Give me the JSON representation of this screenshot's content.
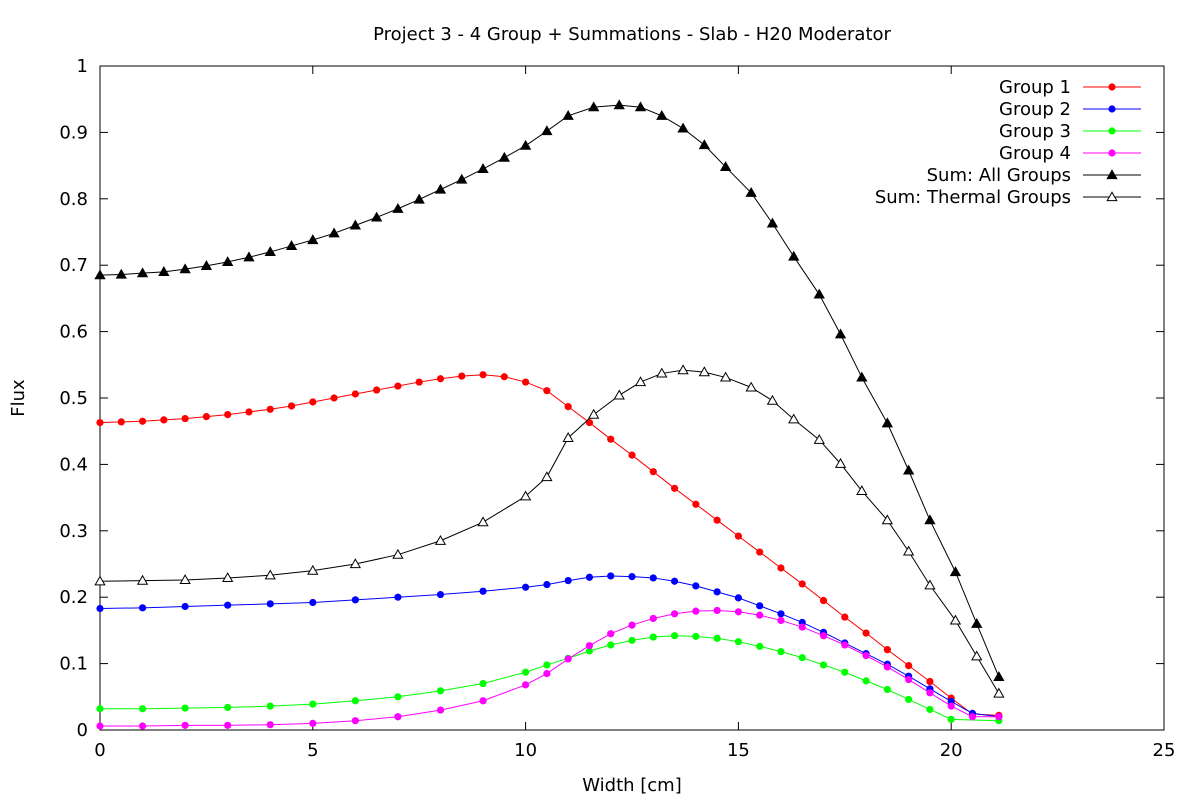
{
  "chart_data": {
    "type": "line",
    "title": "Project 3 - 4 Group + Summations - Slab - H20 Moderator",
    "xlabel": "Width [cm]",
    "ylabel": "Flux",
    "xlim": [
      0,
      25
    ],
    "ylim": [
      0,
      1
    ],
    "xticks": [
      "0",
      "5",
      "10",
      "15",
      "20",
      "25"
    ],
    "yticks": [
      "0",
      "0.1",
      "0.2",
      "0.3",
      "0.4",
      "0.5",
      "0.6",
      "0.7",
      "0.8",
      "0.9",
      "1"
    ],
    "grid": false,
    "legend_position": "top-right",
    "series": [
      {
        "name": "Group 1",
        "color": "#ff0000",
        "marker": "filled-circle",
        "points": [
          [
            0,
            0.463
          ],
          [
            0.5,
            0.464
          ],
          [
            1,
            0.465
          ],
          [
            1.5,
            0.467
          ],
          [
            2,
            0.469
          ],
          [
            2.5,
            0.472
          ],
          [
            3,
            0.475
          ],
          [
            3.5,
            0.479
          ],
          [
            4,
            0.483
          ],
          [
            4.5,
            0.488
          ],
          [
            5,
            0.494
          ],
          [
            5.5,
            0.5
          ],
          [
            6,
            0.506
          ],
          [
            6.5,
            0.512
          ],
          [
            7,
            0.518
          ],
          [
            7.5,
            0.524
          ],
          [
            8,
            0.529
          ],
          [
            8.5,
            0.533
          ],
          [
            9,
            0.535
          ],
          [
            9.5,
            0.532
          ],
          [
            10,
            0.524
          ],
          [
            10.5,
            0.511
          ],
          [
            11,
            0.487
          ],
          [
            11.5,
            0.463
          ],
          [
            12,
            0.438
          ],
          [
            12.5,
            0.414
          ],
          [
            13,
            0.389
          ],
          [
            13.5,
            0.364
          ],
          [
            14,
            0.34
          ],
          [
            14.5,
            0.316
          ],
          [
            15,
            0.292
          ],
          [
            15.5,
            0.268
          ],
          [
            16,
            0.244
          ],
          [
            16.5,
            0.22
          ],
          [
            17,
            0.195
          ],
          [
            17.5,
            0.17
          ],
          [
            18,
            0.146
          ],
          [
            18.5,
            0.121
          ],
          [
            19,
            0.097
          ],
          [
            19.5,
            0.073
          ],
          [
            20,
            0.048
          ],
          [
            20.5,
            0.024
          ],
          [
            21.12,
            0.022
          ]
        ]
      },
      {
        "name": "Group 2",
        "color": "#0000ff",
        "marker": "filled-circle",
        "points": [
          [
            0,
            0.183
          ],
          [
            1,
            0.184
          ],
          [
            2,
            0.186
          ],
          [
            3,
            0.188
          ],
          [
            4,
            0.19
          ],
          [
            5,
            0.192
          ],
          [
            6,
            0.196
          ],
          [
            7,
            0.2
          ],
          [
            8,
            0.204
          ],
          [
            9,
            0.209
          ],
          [
            10,
            0.215
          ],
          [
            10.5,
            0.219
          ],
          [
            11,
            0.225
          ],
          [
            11.5,
            0.23
          ],
          [
            12,
            0.232
          ],
          [
            12.5,
            0.231
          ],
          [
            13,
            0.229
          ],
          [
            13.5,
            0.224
          ],
          [
            14,
            0.217
          ],
          [
            14.5,
            0.208
          ],
          [
            15,
            0.199
          ],
          [
            15.5,
            0.187
          ],
          [
            16,
            0.175
          ],
          [
            16.5,
            0.162
          ],
          [
            17,
            0.147
          ],
          [
            17.5,
            0.131
          ],
          [
            18,
            0.115
          ],
          [
            18.5,
            0.099
          ],
          [
            19,
            0.081
          ],
          [
            19.5,
            0.062
          ],
          [
            20,
            0.043
          ],
          [
            20.5,
            0.025
          ],
          [
            21.12,
            0.02
          ]
        ]
      },
      {
        "name": "Group 3",
        "color": "#00ff00",
        "marker": "filled-circle",
        "points": [
          [
            0,
            0.032
          ],
          [
            1,
            0.032
          ],
          [
            2,
            0.033
          ],
          [
            3,
            0.034
          ],
          [
            4,
            0.036
          ],
          [
            5,
            0.039
          ],
          [
            6,
            0.044
          ],
          [
            7,
            0.05
          ],
          [
            8,
            0.059
          ],
          [
            9,
            0.07
          ],
          [
            10,
            0.087
          ],
          [
            10.5,
            0.098
          ],
          [
            11,
            0.108
          ],
          [
            11.5,
            0.119
          ],
          [
            12,
            0.128
          ],
          [
            12.5,
            0.135
          ],
          [
            13,
            0.14
          ],
          [
            13.5,
            0.142
          ],
          [
            14,
            0.141
          ],
          [
            14.5,
            0.138
          ],
          [
            15,
            0.133
          ],
          [
            15.5,
            0.126
          ],
          [
            16,
            0.118
          ],
          [
            16.5,
            0.109
          ],
          [
            17,
            0.098
          ],
          [
            17.5,
            0.087
          ],
          [
            18,
            0.074
          ],
          [
            18.5,
            0.061
          ],
          [
            19,
            0.046
          ],
          [
            19.5,
            0.031
          ],
          [
            20,
            0.016
          ],
          [
            21.12,
            0.014
          ]
        ]
      },
      {
        "name": "Group 4",
        "color": "#ff00ff",
        "marker": "filled-circle",
        "points": [
          [
            0,
            0.006
          ],
          [
            1,
            0.006
          ],
          [
            2,
            0.007
          ],
          [
            3,
            0.007
          ],
          [
            4,
            0.008
          ],
          [
            5,
            0.01
          ],
          [
            6,
            0.014
          ],
          [
            7,
            0.02
          ],
          [
            8,
            0.03
          ],
          [
            9,
            0.044
          ],
          [
            10,
            0.068
          ],
          [
            10.5,
            0.085
          ],
          [
            11,
            0.107
          ],
          [
            11.5,
            0.127
          ],
          [
            12,
            0.145
          ],
          [
            12.5,
            0.158
          ],
          [
            13,
            0.168
          ],
          [
            13.5,
            0.175
          ],
          [
            14,
            0.179
          ],
          [
            14.5,
            0.18
          ],
          [
            15,
            0.178
          ],
          [
            15.5,
            0.173
          ],
          [
            16,
            0.165
          ],
          [
            16.5,
            0.155
          ],
          [
            17,
            0.142
          ],
          [
            17.5,
            0.128
          ],
          [
            18,
            0.112
          ],
          [
            18.5,
            0.095
          ],
          [
            19,
            0.076
          ],
          [
            19.5,
            0.056
          ],
          [
            20,
            0.036
          ],
          [
            20.5,
            0.02
          ],
          [
            21.12,
            0.02
          ]
        ]
      },
      {
        "name": "Sum: All Groups",
        "color": "#000000",
        "marker": "filled-triangle",
        "points": [
          [
            0,
            0.685
          ],
          [
            0.5,
            0.686
          ],
          [
            1,
            0.688
          ],
          [
            1.5,
            0.69
          ],
          [
            2,
            0.694
          ],
          [
            2.5,
            0.699
          ],
          [
            3,
            0.705
          ],
          [
            3.5,
            0.712
          ],
          [
            4,
            0.72
          ],
          [
            4.5,
            0.729
          ],
          [
            5,
            0.738
          ],
          [
            5.5,
            0.748
          ],
          [
            6,
            0.76
          ],
          [
            6.5,
            0.772
          ],
          [
            7,
            0.785
          ],
          [
            7.5,
            0.799
          ],
          [
            8,
            0.814
          ],
          [
            8.5,
            0.829
          ],
          [
            9,
            0.845
          ],
          [
            9.5,
            0.862
          ],
          [
            10,
            0.88
          ],
          [
            10.5,
            0.902
          ],
          [
            11,
            0.925
          ],
          [
            11.6,
            0.938
          ],
          [
            12.2,
            0.941
          ],
          [
            12.7,
            0.938
          ],
          [
            13.2,
            0.925
          ],
          [
            13.7,
            0.906
          ],
          [
            14.2,
            0.881
          ],
          [
            14.7,
            0.848
          ],
          [
            15.3,
            0.809
          ],
          [
            15.8,
            0.763
          ],
          [
            16.3,
            0.713
          ],
          [
            16.9,
            0.656
          ],
          [
            17.4,
            0.596
          ],
          [
            17.9,
            0.531
          ],
          [
            18.5,
            0.462
          ],
          [
            19,
            0.391
          ],
          [
            19.5,
            0.316
          ],
          [
            20.1,
            0.238
          ],
          [
            20.6,
            0.16
          ],
          [
            21.12,
            0.08
          ]
        ]
      },
      {
        "name": "Sum: Thermal Groups",
        "color": "#000000",
        "marker": "open-triangle",
        "points": [
          [
            0,
            0.224
          ],
          [
            1,
            0.225
          ],
          [
            2,
            0.226
          ],
          [
            3,
            0.229
          ],
          [
            4,
            0.233
          ],
          [
            5,
            0.24
          ],
          [
            6,
            0.25
          ],
          [
            7,
            0.264
          ],
          [
            8,
            0.285
          ],
          [
            9,
            0.313
          ],
          [
            10,
            0.352
          ],
          [
            10.5,
            0.381
          ],
          [
            11,
            0.44
          ],
          [
            11.6,
            0.475
          ],
          [
            12.2,
            0.504
          ],
          [
            12.7,
            0.524
          ],
          [
            13.2,
            0.537
          ],
          [
            13.7,
            0.542
          ],
          [
            14.2,
            0.539
          ],
          [
            14.7,
            0.531
          ],
          [
            15.3,
            0.516
          ],
          [
            15.8,
            0.496
          ],
          [
            16.3,
            0.468
          ],
          [
            16.9,
            0.437
          ],
          [
            17.4,
            0.401
          ],
          [
            17.9,
            0.36
          ],
          [
            18.5,
            0.316
          ],
          [
            19,
            0.269
          ],
          [
            19.5,
            0.218
          ],
          [
            20.1,
            0.165
          ],
          [
            20.6,
            0.111
          ],
          [
            21.12,
            0.055
          ]
        ]
      }
    ]
  }
}
